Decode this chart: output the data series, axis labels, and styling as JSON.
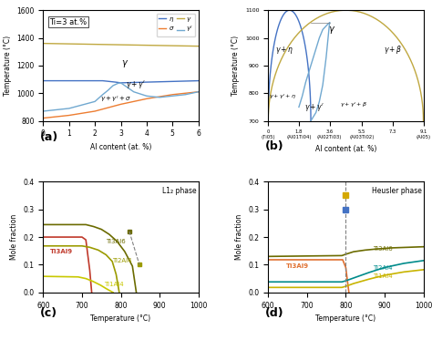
{
  "fig_width": 4.74,
  "fig_height": 3.73,
  "a_title": "Ti=3 at.%",
  "a_xlabel": "Al content (at. %)",
  "a_ylabel": "Temperature (°C)",
  "a_xlim": [
    0,
    6
  ],
  "a_ylim": [
    800,
    1600
  ],
  "a_label_a": "(a)",
  "b_xlabel": "Al content (at. %)",
  "b_ylabel": "Temperature (°C)",
  "b_xlim": [
    0,
    9.1
  ],
  "b_ylim": [
    700,
    1100
  ],
  "b_label_b": "(b)",
  "c_xlabel": "Temperature (°C)",
  "c_ylabel": "Mole fraction",
  "c_xlim": [
    600,
    1000
  ],
  "c_ylim": [
    0,
    0.4
  ],
  "c_label": "(c)",
  "c_annotation": "L1₂ phase",
  "d_xlabel": "Temperature (°C)",
  "d_ylabel": "Mole fraction",
  "d_xlim": [
    600,
    1000
  ],
  "d_ylim": [
    0,
    0.4
  ],
  "d_label": "(d)",
  "d_annotation": "Heusler phase",
  "colors": {
    "eta": "#4472c4",
    "sigma": "#ed7d31",
    "gamma": "#c0a840",
    "gamma_prime": "#70a8d0",
    "red": "#c0392b",
    "dark_olive": "#6b6b00",
    "mid_olive": "#9b9b00",
    "light_yellow": "#c8c800",
    "teal": "#008b8b",
    "orange": "#e07030",
    "gold": "#c8b400",
    "blue_marker": "#4472c4",
    "yellow_marker": "#d4a800"
  }
}
